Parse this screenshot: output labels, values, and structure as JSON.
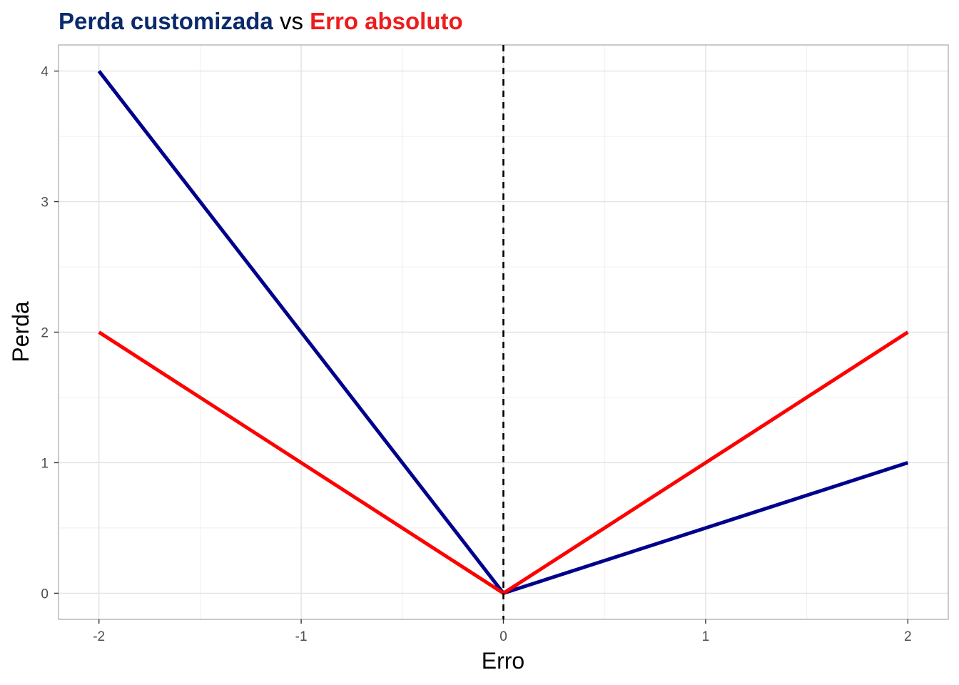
{
  "chart_data": {
    "type": "line",
    "title_parts": [
      {
        "text": "Perda customizada",
        "color": "#0b2a6b",
        "bold": true
      },
      {
        "text": " vs ",
        "color": "#000000",
        "bold": false
      },
      {
        "text": "Erro absoluto",
        "color": "#ee1c1c",
        "bold": true
      }
    ],
    "xlabel": "Erro",
    "ylabel": "Perda",
    "xlim": [
      -2.2,
      2.2
    ],
    "ylim": [
      -0.2,
      4.2
    ],
    "x_ticks": [
      -2,
      -1,
      0,
      1,
      2
    ],
    "x_tick_labels": [
      "-2",
      "-1",
      "0",
      "1",
      "2"
    ],
    "y_ticks": [
      0,
      1,
      2,
      3,
      4
    ],
    "y_tick_labels": [
      "0",
      "1",
      "2",
      "3",
      "4"
    ],
    "grid": true,
    "vline": {
      "x": 0,
      "style": "dashed",
      "color": "#000000"
    },
    "series": [
      {
        "color": "#00008b",
        "x": [
          -2,
          0,
          2
        ],
        "y": [
          4,
          0,
          1
        ]
      },
      {
        "color": "#ff0000",
        "x": [
          -2,
          0,
          2
        ],
        "y": [
          2,
          0,
          2
        ]
      }
    ]
  }
}
